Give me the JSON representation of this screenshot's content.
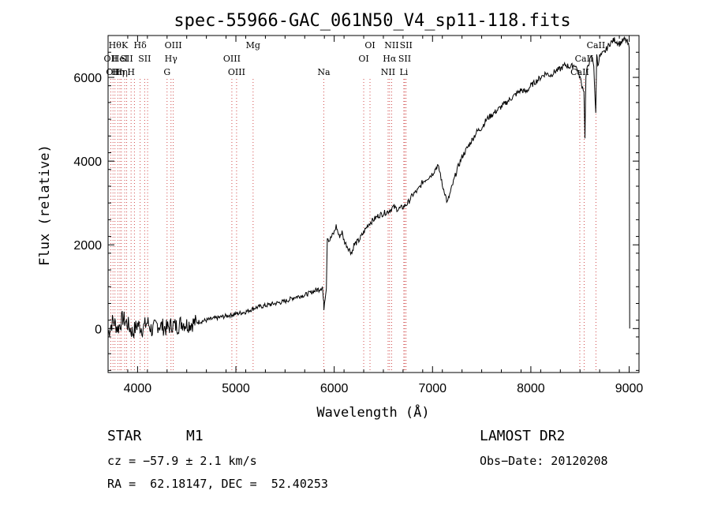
{
  "chart_data": {
    "type": "line",
    "title": "spec-55966-GAC_061N50_V4_sp11-118.fits",
    "xlabel": "Wavelength (Å)",
    "ylabel": "Flux (relative)",
    "xlim": [
      3700,
      9100
    ],
    "ylim": [
      -1050,
      7000
    ],
    "xticks": [
      4000,
      5000,
      6000,
      7000,
      8000,
      9000
    ],
    "yticks": [
      0,
      2000,
      4000,
      6000
    ],
    "grid": false,
    "series": [
      {
        "values_note": "",
        "x": [
          3700,
          3750,
          3800,
          3850,
          3900,
          3950,
          4000,
          4050,
          4100,
          4150,
          4200,
          4250,
          4300,
          4350,
          4400,
          4450,
          4500,
          4600,
          4700,
          4800,
          4900,
          5000,
          5100,
          5200,
          5300,
          5400,
          5500,
          5600,
          5700,
          5800,
          5850,
          5880,
          5890,
          5895,
          5920,
          5930,
          5950,
          6000,
          6020,
          6050,
          6080,
          6100,
          6150,
          6180,
          6200,
          6250,
          6300,
          6350,
          6400,
          6450,
          6500,
          6550,
          6600,
          6650,
          6700,
          6750,
          6800,
          6850,
          6900,
          6950,
          7000,
          7050,
          7080,
          7100,
          7120,
          7150,
          7200,
          7250,
          7300,
          7350,
          7400,
          7450,
          7500,
          7550,
          7600,
          7650,
          7700,
          7750,
          7800,
          7850,
          7900,
          7950,
          8000,
          8050,
          8100,
          8150,
          8200,
          8250,
          8300,
          8350,
          8400,
          8450,
          8480,
          8500,
          8520,
          8540,
          8550,
          8560,
          8580,
          8600,
          8620,
          8640,
          8660,
          8670,
          8680,
          8700,
          8750,
          8800,
          8850,
          8900,
          8950,
          8980,
          9000,
          9005
        ],
        "y": [
          -100,
          200,
          0,
          250,
          100,
          -100,
          100,
          0,
          150,
          -50,
          100,
          50,
          0,
          100,
          50,
          150,
          100,
          150,
          200,
          250,
          300,
          350,
          400,
          500,
          550,
          600,
          650,
          750,
          800,
          900,
          950,
          1000,
          700,
          500,
          1000,
          2200,
          2100,
          2300,
          2450,
          2200,
          2300,
          2100,
          1900,
          1800,
          2000,
          2100,
          2300,
          2500,
          2600,
          2700,
          2750,
          2800,
          2900,
          2850,
          2900,
          3000,
          3200,
          3300,
          3500,
          3600,
          3700,
          3900,
          3700,
          3400,
          3300,
          3000,
          3400,
          3800,
          4100,
          4300,
          4500,
          4700,
          4800,
          5000,
          5100,
          5200,
          5300,
          5400,
          5500,
          5600,
          5700,
          5650,
          5800,
          5900,
          6000,
          6100,
          6050,
          6150,
          6200,
          6300,
          6250,
          6300,
          6150,
          6000,
          5800,
          5700,
          4600,
          6000,
          6300,
          6400,
          6500,
          6300,
          5100,
          6600,
          6300,
          6500,
          6600,
          6800,
          6900,
          6800,
          6900,
          6850,
          6700,
          0
        ]
      }
    ],
    "lines": [
      {
        "w": 3727,
        "top": "OII",
        "row": 1
      },
      {
        "w": 3750,
        "top": "OII",
        "row": 2
      },
      {
        "w": 3770,
        "top": "Hθ",
        "row": 0
      },
      {
        "w": 3799,
        "top": "Hη",
        "row": 2
      },
      {
        "w": 3820,
        "top": "HeI",
        "row": 1
      },
      {
        "w": 3835,
        "top": "Hη",
        "row": 2
      },
      {
        "w": 3869,
        "top": "K",
        "row": 0
      },
      {
        "w": 3889,
        "top": "SII",
        "row": 1
      },
      {
        "w": 3934,
        "top": "H",
        "row": 2
      },
      {
        "w": 3968,
        "top": "",
        "row": -1
      },
      {
        "w": 4026,
        "top": "Hδ",
        "row": 0
      },
      {
        "w": 4072,
        "top": "SII",
        "row": 1
      },
      {
        "w": 4102,
        "top": "",
        "row": -1
      },
      {
        "w": 4300,
        "top": "G",
        "row": 2
      },
      {
        "w": 4340,
        "top": "Hγ",
        "row": 1
      },
      {
        "w": 4363,
        "top": "OIII",
        "row": 0
      },
      {
        "w": 4959,
        "top": "OIII",
        "row": 1
      },
      {
        "w": 5007,
        "top": "OIII",
        "row": 2
      },
      {
        "w": 5175,
        "top": "Mg",
        "row": 0
      },
      {
        "w": 5894,
        "top": "Na",
        "row": 2
      },
      {
        "w": 6300,
        "top": "OI",
        "row": 1
      },
      {
        "w": 6364,
        "top": "OI",
        "row": 0
      },
      {
        "w": 6548,
        "top": "NII",
        "row": 2
      },
      {
        "w": 6563,
        "top": "Hα",
        "row": 1
      },
      {
        "w": 6584,
        "top": "NII",
        "row": 0
      },
      {
        "w": 6708,
        "top": "Li",
        "row": 2
      },
      {
        "w": 6717,
        "top": "SII",
        "row": 1
      },
      {
        "w": 6731,
        "top": "SII",
        "row": 0
      },
      {
        "w": 8498,
        "top": "CaII",
        "row": 2
      },
      {
        "w": 8542,
        "top": "CaII",
        "row": 1
      },
      {
        "w": 8662,
        "top": "CaII",
        "row": 0
      }
    ]
  },
  "info": {
    "class_label": "STAR",
    "subclass": "M1",
    "survey": "LAMOST DR2",
    "cz": "cz = −57.9 ± 2.1 km/s",
    "obs_date": "Obs−Date: 20120208",
    "coords": "RA =  62.18147, DEC =  52.40253"
  }
}
